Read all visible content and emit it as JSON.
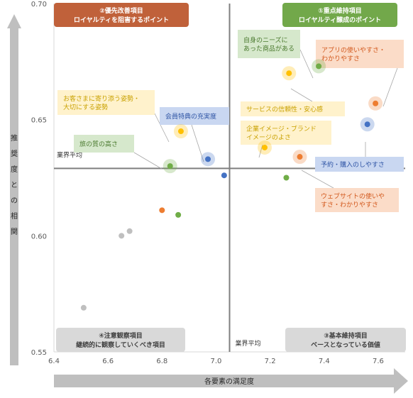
{
  "chart_data": {
    "type": "scatter",
    "xlabel": "各要素の満足度",
    "ylabel": "推奨度との相関",
    "xlim": [
      6.4,
      7.7
    ],
    "ylim": [
      0.55,
      0.7
    ],
    "xticks": [
      "6.4",
      "6.6",
      "6.8",
      "7.0",
      "7.2",
      "7.4",
      "7.6"
    ],
    "yticks": [
      "0.55",
      "0.60",
      "0.65",
      "0.70"
    ],
    "avg_x": 7.05,
    "avg_y": 0.629,
    "avg_label_h": "業界平均",
    "avg_label_v": "業界平均",
    "quadrants": {
      "top_left": {
        "line1": "②優先改善項目",
        "line2": "ロイヤルティを阻害するポイント",
        "color": "#C0613A"
      },
      "top_right": {
        "line1": "①重点維持項目",
        "line2": "ロイヤルティ醸成のポイント",
        "color": "#72A84A"
      },
      "bottom_left": {
        "line1": "④注意観察項目",
        "line2": "継続的に観察していくべき項目",
        "color": "#D9D9D9"
      },
      "bottom_right": {
        "line1": "③基本維持項目",
        "line2": "ベースとなっている価値",
        "color": "#D9D9D9"
      }
    },
    "points": [
      {
        "x": 6.51,
        "y": 0.569,
        "color": "#BFBFBF",
        "highlight": false
      },
      {
        "x": 6.65,
        "y": 0.6,
        "color": "#BFBFBF",
        "highlight": false
      },
      {
        "x": 6.68,
        "y": 0.602,
        "color": "#BFBFBF",
        "highlight": false
      },
      {
        "x": 6.8,
        "y": 0.611,
        "color": "#ED7D31",
        "highlight": false
      },
      {
        "x": 6.86,
        "y": 0.609,
        "color": "#70AD47",
        "highlight": false
      },
      {
        "x": 7.03,
        "y": 0.626,
        "color": "#4472C4",
        "highlight": false
      },
      {
        "x": 7.26,
        "y": 0.625,
        "color": "#70AD47",
        "highlight": false
      },
      {
        "x": 6.83,
        "y": 0.63,
        "color": "#70AD47",
        "highlight": true
      },
      {
        "x": 6.97,
        "y": 0.633,
        "color": "#4472C4",
        "highlight": true
      },
      {
        "x": 6.87,
        "y": 0.645,
        "color": "#FFC000",
        "highlight": true
      },
      {
        "x": 7.18,
        "y": 0.638,
        "color": "#FFC000",
        "highlight": true
      },
      {
        "x": 7.31,
        "y": 0.634,
        "color": "#ED7D31",
        "highlight": true
      },
      {
        "x": 7.27,
        "y": 0.67,
        "color": "#FFC000",
        "highlight": true
      },
      {
        "x": 7.38,
        "y": 0.673,
        "color": "#70AD47",
        "highlight": true
      },
      {
        "x": 7.56,
        "y": 0.648,
        "color": "#4472C4",
        "highlight": true
      },
      {
        "x": 7.59,
        "y": 0.657,
        "color": "#ED7D31",
        "highlight": true
      }
    ],
    "annotations": [
      {
        "lines": [
          "お客さまに寄り添う姿勢・",
          "大切にする姿勢"
        ],
        "type": "yellow",
        "point": 9
      },
      {
        "lines": [
          "会員特典の充実度"
        ],
        "type": "blue",
        "point": 8
      },
      {
        "lines": [
          "旅の質の高さ"
        ],
        "type": "green",
        "point": 7
      },
      {
        "lines": [
          "自身のニーズに",
          "あった商品がある"
        ],
        "type": "green",
        "point": 13
      },
      {
        "lines": [
          "アプリの使いやすさ・",
          "わかりやすさ"
        ],
        "type": "orange",
        "point": 15
      },
      {
        "lines": [
          "サービスの信頼性・安心感"
        ],
        "type": "yellow",
        "point": 12
      },
      {
        "lines": [
          "企業イメージ・ブランド",
          "イメージのよさ"
        ],
        "type": "yellow",
        "point": 10
      },
      {
        "lines": [
          "予約・購入のしやすさ"
        ],
        "type": "blue",
        "point": 14
      },
      {
        "lines": [
          "ウェブサイトの使いや",
          "すさ・わかりやすさ"
        ],
        "type": "orange",
        "point": 11
      }
    ],
    "styles": {
      "yellow": {
        "fill": "#FFF2CC",
        "text": "#C9A100"
      },
      "blue": {
        "fill": "#C9D7F1",
        "text": "#2E54A5"
      },
      "green": {
        "fill": "#D6E8CC",
        "text": "#4B7A2F"
      },
      "orange": {
        "fill": "#FBDCC8",
        "text": "#D2581C"
      }
    }
  }
}
